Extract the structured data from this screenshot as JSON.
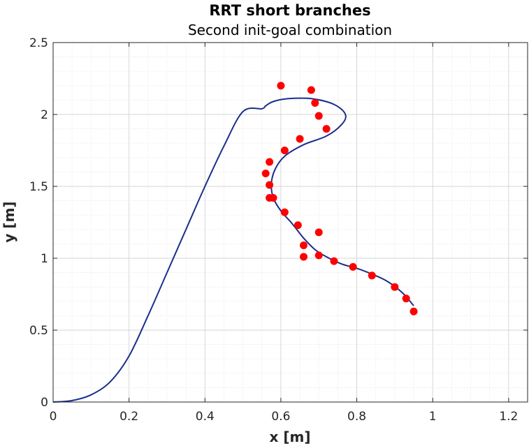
{
  "chart_data": {
    "type": "line",
    "title": "RRT short branches",
    "subtitle": "Second init-goal combination",
    "xlabel": "x [m]",
    "ylabel": "y [m]",
    "xlim": [
      0,
      1.25
    ],
    "ylim": [
      0,
      2.5
    ],
    "xticks": [
      0,
      0.2,
      0.4,
      0.6,
      0.8,
      1,
      1.2
    ],
    "yticks": [
      0,
      0.5,
      1,
      1.5,
      2,
      2.5
    ],
    "xtick_labels": [
      "0",
      "0.2",
      "0.4",
      "0.6",
      "0.8",
      "1",
      "1.2"
    ],
    "ytick_labels": [
      "0",
      "0.5",
      "1",
      "1.5",
      "2",
      "2.5"
    ],
    "grid": true,
    "minor_grid": true,
    "legend": "none",
    "series": [
      {
        "type": "line",
        "color": "#1a2f8c",
        "x": [
          0,
          0.05,
          0.1,
          0.15,
          0.2,
          0.25,
          0.3,
          0.35,
          0.4,
          0.45,
          0.5,
          0.55,
          0.56,
          0.58,
          0.62,
          0.68,
          0.74,
          0.77,
          0.76,
          0.72,
          0.66,
          0.61,
          0.585,
          0.575,
          0.58,
          0.6,
          0.63,
          0.66,
          0.69,
          0.72,
          0.76,
          0.8,
          0.84,
          0.88,
          0.92,
          0.95
        ],
        "y": [
          0,
          0.01,
          0.05,
          0.14,
          0.32,
          0.6,
          0.9,
          1.2,
          1.5,
          1.78,
          2.02,
          2.04,
          2.06,
          2.09,
          2.11,
          2.11,
          2.07,
          2.0,
          1.93,
          1.85,
          1.79,
          1.71,
          1.62,
          1.52,
          1.42,
          1.33,
          1.24,
          1.14,
          1.06,
          1.01,
          0.96,
          0.93,
          0.89,
          0.84,
          0.76,
          0.67
        ]
      },
      {
        "type": "scatter",
        "color": "#ff0000",
        "x": [
          0.6,
          0.68,
          0.69,
          0.7,
          0.72,
          0.65,
          0.61,
          0.57,
          0.56,
          0.57,
          0.57,
          0.58,
          0.61,
          0.645,
          0.7,
          0.66,
          0.66,
          0.7,
          0.74,
          0.79,
          0.84,
          0.9,
          0.93,
          0.95
        ],
        "y": [
          2.2,
          2.17,
          2.08,
          1.99,
          1.9,
          1.83,
          1.75,
          1.67,
          1.59,
          1.51,
          1.42,
          1.42,
          1.32,
          1.23,
          1.18,
          1.09,
          1.01,
          1.02,
          0.98,
          0.94,
          0.88,
          0.8,
          0.72,
          0.63
        ]
      }
    ]
  }
}
